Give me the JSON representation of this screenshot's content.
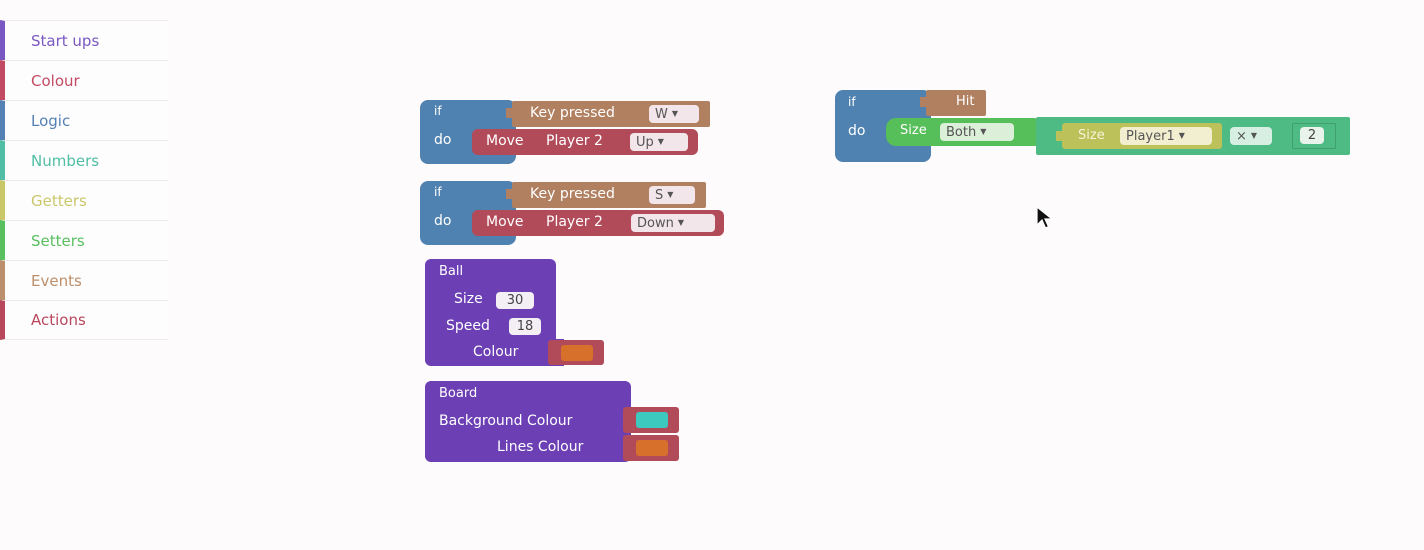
{
  "toolbox": {
    "categories": [
      {
        "label": "Start ups",
        "color": "#7a58c2"
      },
      {
        "label": "Colour",
        "color": "#c24b63"
      },
      {
        "label": "Logic",
        "color": "#5480b4"
      },
      {
        "label": "Numbers",
        "color": "#4fbea5"
      },
      {
        "label": "Getters",
        "color": "#c9c76a"
      },
      {
        "label": "Setters",
        "color": "#58c05e"
      },
      {
        "label": "Events",
        "color": "#bb8f6b"
      },
      {
        "label": "Actions",
        "color": "#b9475c"
      }
    ]
  },
  "blocks": {
    "if_w": {
      "if": "if",
      "do": "do",
      "condition": "Key pressed",
      "key": "W",
      "action": "Move",
      "player": "Player 2",
      "direction": "Up"
    },
    "if_s": {
      "if": "if",
      "do": "do",
      "condition": "Key pressed",
      "key": "S",
      "action": "Move",
      "player": "Player 2",
      "direction": "Down"
    },
    "ball": {
      "title": "Ball",
      "size_label": "Size",
      "size_value": "30",
      "speed_label": "Speed",
      "speed_value": "18",
      "colour_label": "Colour",
      "colour_value": "#d7702a"
    },
    "board": {
      "title": "Board",
      "bg_label": "Background Colour",
      "bg_value": "#3ec9bf",
      "lines_label": "Lines Colour",
      "lines_value": "#d7702a"
    },
    "if_hit": {
      "if": "if",
      "do": "do",
      "condition": "Hit",
      "set_label": "Size",
      "set_target": "Both",
      "get_label": "Size",
      "get_target": "Player1",
      "operator": "×",
      "operand": "2"
    }
  },
  "cursor": {
    "icon": "mouse-pointer-icon"
  }
}
